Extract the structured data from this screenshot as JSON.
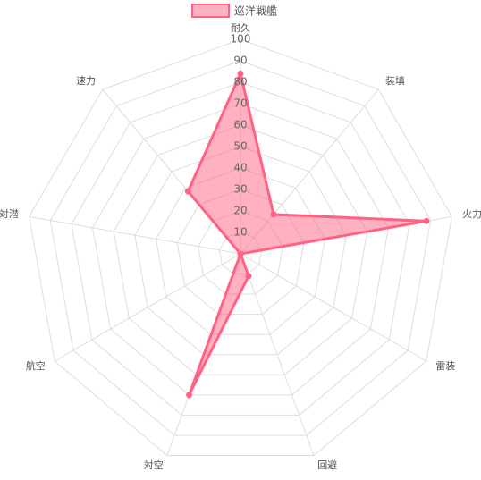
{
  "chart_data": {
    "type": "radar",
    "categories": [
      "耐久",
      "装填",
      "火力",
      "雷装",
      "回避",
      "対空",
      "航空",
      "対潜",
      "速力"
    ],
    "series": [
      {
        "name": "巡洋戦艦",
        "color": "#ff6384",
        "values": [
          84,
          24,
          88,
          0,
          11,
          70,
          0,
          0,
          38
        ]
      }
    ],
    "ylim": [
      0,
      100
    ],
    "yticks": [
      10,
      20,
      30,
      40,
      50,
      60,
      70,
      80,
      90,
      100
    ],
    "grid": true
  }
}
